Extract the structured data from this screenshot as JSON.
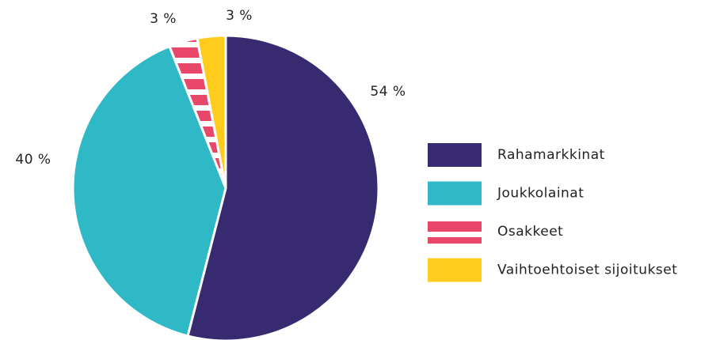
{
  "chart_data": {
    "type": "pie",
    "categories": [
      "Rahamarkkinat",
      "Joukkolainat",
      "Osakkeet",
      "Vaihtoehtoiset sijoitukset"
    ],
    "values": [
      54,
      40,
      3,
      3
    ],
    "value_labels": [
      "54 %",
      "40 %",
      "3 %",
      "3 %"
    ],
    "colors": [
      "#382a70",
      "#2fb8c6",
      "#e8476a",
      "#ffcc1e"
    ],
    "hatch": [
      false,
      false,
      true,
      false
    ],
    "legend": "right"
  }
}
